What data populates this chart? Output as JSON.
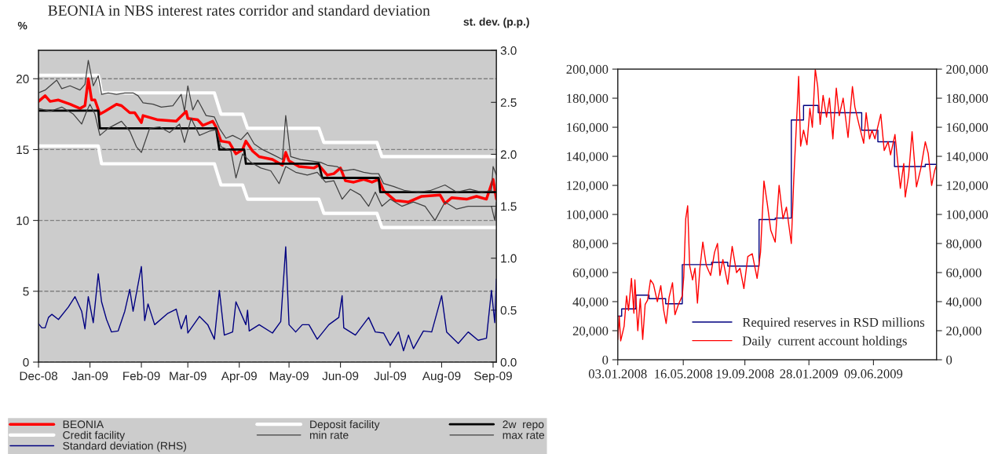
{
  "chart_data": [
    {
      "type": "line",
      "title": "BEONIA in NBS interest rates corridor and standard deviation",
      "ylabel": "%",
      "y2label": "st. dev. (p.p.)",
      "xlim": [
        "2008-12-01",
        "2009-09-03"
      ],
      "xticks": [
        {
          "value": "2008-12-01",
          "label": "Dec-08"
        },
        {
          "value": "2009-01-01",
          "label": "Jan-09"
        },
        {
          "value": "2009-02-01",
          "label": "Feb-09"
        },
        {
          "value": "2009-03-01",
          "label": "Mar-09"
        },
        {
          "value": "2009-04-01",
          "label": "Apr-09"
        },
        {
          "value": "2009-05-01",
          "label": "May-09"
        },
        {
          "value": "2009-06-01",
          "label": "Jun-09"
        },
        {
          "value": "2009-07-01",
          "label": "Jul-09"
        },
        {
          "value": "2009-08-01",
          "label": "Aug-09"
        },
        {
          "value": "2009-09-01",
          "label": "Sep-09"
        }
      ],
      "ylim": [
        0,
        22
      ],
      "yticks": [
        0,
        5,
        10,
        15,
        20
      ],
      "y2lim": [
        0,
        3
      ],
      "y2ticks": [
        {
          "value": 0,
          "label": "0.0"
        },
        {
          "value": 0.5,
          "label": "0.5"
        },
        {
          "value": 1,
          "label": "1.0"
        },
        {
          "value": 1.5,
          "label": "1.5"
        },
        {
          "value": 2,
          "label": "2.0"
        },
        {
          "value": 2.5,
          "label": "2.5"
        },
        {
          "value": 3,
          "label": "3.0"
        }
      ],
      "grid": "y",
      "legend": "bottom",
      "series": [
        {
          "name": "BEONIA",
          "color": "#ff0000",
          "x": [
            "2008-12-01",
            "2008-12-05",
            "2008-12-08",
            "2008-12-13",
            "2008-12-20",
            "2008-12-26",
            "2008-12-29",
            "2008-12-31",
            "2009-01-02",
            "2009-01-04",
            "2009-01-07",
            "2009-01-10",
            "2009-01-17",
            "2009-01-20",
            "2009-01-25",
            "2009-01-28",
            "2009-02-01",
            "2009-02-02",
            "2009-02-11",
            "2009-02-22",
            "2009-02-28",
            "2009-03-01",
            "2009-03-07",
            "2009-03-10",
            "2009-03-16",
            "2009-03-18",
            "2009-03-21",
            "2009-03-26",
            "2009-03-30",
            "2009-04-03",
            "2009-04-05",
            "2009-04-09",
            "2009-04-13",
            "2009-04-21",
            "2009-04-27",
            "2009-04-29",
            "2009-05-01",
            "2009-05-07",
            "2009-05-16",
            "2009-05-19",
            "2009-05-24",
            "2009-05-28",
            "2009-06-01",
            "2009-06-04",
            "2009-06-09",
            "2009-06-15",
            "2009-06-20",
            "2009-06-24",
            "2009-06-27",
            "2009-07-04",
            "2009-07-12",
            "2009-07-20",
            "2009-07-31",
            "2009-08-03",
            "2009-08-07",
            "2009-08-16",
            "2009-08-22",
            "2009-08-28",
            "2009-09-01",
            "2009-09-03"
          ],
          "values": [
            18.4,
            18.8,
            18.4,
            18.5,
            18.2,
            17.9,
            18.1,
            20.0,
            18.5,
            18.5,
            17.5,
            17.7,
            18.2,
            18.1,
            17.6,
            17.6,
            16.9,
            17.4,
            17.1,
            17.0,
            17.7,
            17.2,
            17.1,
            16.7,
            17.0,
            16.6,
            15.6,
            15.5,
            14.7,
            15.0,
            15.6,
            14.9,
            14.5,
            14.3,
            13.9,
            14.8,
            14.2,
            13.8,
            13.7,
            13.9,
            13.2,
            13.3,
            13.7,
            12.8,
            12.7,
            12.9,
            12.7,
            12.9,
            12.1,
            11.4,
            11.3,
            11.7,
            11.8,
            11.2,
            11.6,
            11.5,
            11.7,
            11.5,
            12.9,
            11.5
          ]
        },
        {
          "name": "Deposit facility",
          "color": "#ffffff",
          "x": [
            "2008-12-01",
            "2009-01-06",
            "2009-01-08",
            "2009-03-17",
            "2009-03-21",
            "2009-04-03",
            "2009-04-06",
            "2009-05-19",
            "2009-05-22",
            "2009-06-23",
            "2009-06-26",
            "2009-09-03"
          ],
          "values": [
            15.25,
            15.25,
            14,
            14,
            12.5,
            12.5,
            11.5,
            11.5,
            10.5,
            10.5,
            9.5,
            9.5
          ]
        },
        {
          "name": "2w  repo",
          "color": "#000000",
          "x": [
            "2008-12-01",
            "2009-01-06",
            "2009-01-07",
            "2009-03-18",
            "2009-03-20",
            "2009-04-04",
            "2009-04-05",
            "2009-05-19",
            "2009-05-21",
            "2009-06-24",
            "2009-06-25",
            "2009-09-03"
          ],
          "values": [
            17.75,
            17.75,
            16.5,
            16.5,
            15,
            15,
            14,
            14,
            13,
            13,
            12,
            12
          ]
        },
        {
          "name": "Credit facility",
          "color": "#ffffff",
          "x": [
            "2008-12-01",
            "2009-01-06",
            "2009-01-08",
            "2009-03-17",
            "2009-03-21",
            "2009-04-03",
            "2009-04-06",
            "2009-05-19",
            "2009-05-22",
            "2009-06-23",
            "2009-06-26",
            "2009-09-03"
          ],
          "values": [
            20.25,
            20.25,
            19,
            19,
            17.5,
            17.5,
            16.5,
            16.5,
            15.5,
            15.5,
            14.5,
            14.5
          ]
        },
        {
          "name": "min rate",
          "color": "#404040",
          "x": [
            "2008-12-01",
            "2008-12-08",
            "2008-12-15",
            "2008-12-22",
            "2008-12-27",
            "2008-12-30",
            "2009-01-01",
            "2009-01-04",
            "2009-01-07",
            "2009-01-12",
            "2009-01-20",
            "2009-01-25",
            "2009-01-29",
            "2009-02-01",
            "2009-02-06",
            "2009-02-12",
            "2009-02-18",
            "2009-02-24",
            "2009-02-27",
            "2009-03-03",
            "2009-03-08",
            "2009-03-14",
            "2009-03-18",
            "2009-03-21",
            "2009-03-27",
            "2009-03-30",
            "2009-04-03",
            "2009-04-08",
            "2009-04-14",
            "2009-04-20",
            "2009-04-25",
            "2009-04-29",
            "2009-05-05",
            "2009-05-12",
            "2009-05-18",
            "2009-05-23",
            "2009-05-28",
            "2009-06-02",
            "2009-06-07",
            "2009-06-13",
            "2009-06-18",
            "2009-06-22",
            "2009-06-26",
            "2009-07-01",
            "2009-07-08",
            "2009-07-15",
            "2009-07-22",
            "2009-07-28",
            "2009-08-03",
            "2009-08-10",
            "2009-08-17",
            "2009-08-24",
            "2009-08-31",
            "2009-09-02",
            "2009-09-03"
          ],
          "values": [
            17.9,
            17.7,
            18.0,
            17.5,
            16.8,
            17.7,
            18.2,
            17.5,
            16.0,
            16.5,
            17.0,
            16.3,
            15.2,
            14.8,
            16.5,
            16.6,
            16.2,
            16.8,
            15.5,
            17.2,
            16.0,
            16.3,
            16.4,
            15.2,
            14.9,
            13.0,
            14.7,
            14.1,
            13.7,
            13.5,
            12.6,
            13.8,
            13.4,
            13.2,
            13.4,
            12.7,
            12.8,
            11.5,
            12.2,
            11.8,
            11.0,
            12.0,
            11.0,
            11.5,
            11.0,
            11.3,
            11.0,
            10.0,
            11.3,
            10.8,
            11.0,
            11.0,
            11.0,
            10.0,
            11.3
          ]
        },
        {
          "name": "max rate",
          "color": "#404040",
          "x": [
            "2008-12-01",
            "2008-12-05",
            "2008-12-08",
            "2008-12-12",
            "2008-12-15",
            "2008-12-20",
            "2008-12-26",
            "2008-12-29",
            "2008-12-31",
            "2009-01-03",
            "2009-01-06",
            "2009-01-08",
            "2009-01-12",
            "2009-01-17",
            "2009-01-22",
            "2009-01-27",
            "2009-01-30",
            "2009-02-02",
            "2009-02-08",
            "2009-02-13",
            "2009-02-20",
            "2009-02-25",
            "2009-02-27",
            "2009-03-01",
            "2009-03-04",
            "2009-03-07",
            "2009-03-12",
            "2009-03-17",
            "2009-03-20",
            "2009-03-24",
            "2009-03-28",
            "2009-04-02",
            "2009-04-06",
            "2009-04-10",
            "2009-04-15",
            "2009-04-22",
            "2009-04-27",
            "2009-04-29",
            "2009-05-02",
            "2009-05-08",
            "2009-05-14",
            "2009-05-20",
            "2009-05-24",
            "2009-05-30",
            "2009-06-03",
            "2009-06-09",
            "2009-06-15",
            "2009-06-20",
            "2009-06-24",
            "2009-06-27",
            "2009-07-03",
            "2009-07-10",
            "2009-07-18",
            "2009-07-25",
            "2009-08-03",
            "2009-08-10",
            "2009-08-18",
            "2009-08-25",
            "2009-08-31",
            "2009-09-01",
            "2009-09-03"
          ],
          "values": [
            19.0,
            19.2,
            19.5,
            19.9,
            19.3,
            19.5,
            19.2,
            19.6,
            21.3,
            19.5,
            20.2,
            18.9,
            19.0,
            18.9,
            19.0,
            19.0,
            18.8,
            18.3,
            18.2,
            18.0,
            18.1,
            18.9,
            17.7,
            19.5,
            17.8,
            18.5,
            17.4,
            17.3,
            16.5,
            15.8,
            16.0,
            15.7,
            16.2,
            15.4,
            15.0,
            14.6,
            14.3,
            17.4,
            14.5,
            14.3,
            14.2,
            14.1,
            13.9,
            13.8,
            13.5,
            13.6,
            13.4,
            13.3,
            13.3,
            12.6,
            12.4,
            12.1,
            12.0,
            12.1,
            12.5,
            12.0,
            12.2,
            12.0,
            12.1,
            13.8,
            13.2
          ]
        },
        {
          "name": "Standard deviation (RHS)",
          "color": "#000080",
          "axis": "y2",
          "x": [
            "2008-12-01",
            "2008-12-03",
            "2008-12-05",
            "2008-12-07",
            "2008-12-09",
            "2008-12-13",
            "2008-12-19",
            "2008-12-23",
            "2008-12-27",
            "2008-12-29",
            "2008-12-31",
            "2009-01-03",
            "2009-01-06",
            "2009-01-08",
            "2009-01-11",
            "2009-01-14",
            "2009-01-18",
            "2009-01-22",
            "2009-01-25",
            "2009-01-27",
            "2009-02-01",
            "2009-02-03",
            "2009-02-05",
            "2009-02-09",
            "2009-02-17",
            "2009-02-22",
            "2009-02-25",
            "2009-02-28",
            "2009-03-01",
            "2009-03-08",
            "2009-03-13",
            "2009-03-17",
            "2009-03-20",
            "2009-03-23",
            "2009-03-28",
            "2009-03-30",
            "2009-04-05",
            "2009-04-06",
            "2009-04-07",
            "2009-04-13",
            "2009-04-21",
            "2009-04-26",
            "2009-04-29",
            "2009-05-01",
            "2009-05-05",
            "2009-05-09",
            "2009-05-13",
            "2009-05-18",
            "2009-05-25",
            "2009-05-31",
            "2009-06-02",
            "2009-06-03",
            "2009-06-10",
            "2009-06-18",
            "2009-06-22",
            "2009-06-27",
            "2009-07-01",
            "2009-07-06",
            "2009-07-09",
            "2009-07-12",
            "2009-07-15",
            "2009-07-21",
            "2009-07-26",
            "2009-08-01",
            "2009-08-04",
            "2009-08-11",
            "2009-08-17",
            "2009-08-23",
            "2009-08-28",
            "2009-08-31",
            "2009-09-02",
            "2009-09-03"
          ],
          "values": [
            0.37,
            0.33,
            0.33,
            0.43,
            0.46,
            0.41,
            0.53,
            0.63,
            0.49,
            0.32,
            0.63,
            0.38,
            0.85,
            0.58,
            0.41,
            0.29,
            0.3,
            0.49,
            0.7,
            0.49,
            0.92,
            0.4,
            0.56,
            0.36,
            0.47,
            0.51,
            0.32,
            0.45,
            0.28,
            0.44,
            0.36,
            0.22,
            0.69,
            0.26,
            0.29,
            0.58,
            0.36,
            0.5,
            0.3,
            0.36,
            0.28,
            0.39,
            1.11,
            0.36,
            0.29,
            0.36,
            0.36,
            0.22,
            0.36,
            0.43,
            0.64,
            0.33,
            0.26,
            0.43,
            0.29,
            0.28,
            0.16,
            0.29,
            0.11,
            0.26,
            0.13,
            0.3,
            0.29,
            0.64,
            0.29,
            0.18,
            0.29,
            0.21,
            0.23,
            0.69,
            0.38,
            0.8
          ]
        }
      ]
    },
    {
      "type": "line",
      "xlim": [
        "2008-01-03",
        "2009-10-16"
      ],
      "xticks": [
        {
          "value": "2008-01-03",
          "label": "03.01.2008"
        },
        {
          "value": "2008-05-16",
          "label": "16.05.2008"
        },
        {
          "value": "2008-09-19",
          "label": "19.09.2008"
        },
        {
          "value": "2009-01-28",
          "label": "28.01.2009"
        },
        {
          "value": "2009-06-09",
          "label": "09.06.2009"
        }
      ],
      "ylim": [
        0,
        200000
      ],
      "yticks": [
        0,
        {
          "value": 20000,
          "label": "20,000"
        },
        {
          "value": 40000,
          "label": "40,000"
        },
        {
          "value": 60000,
          "label": "60,000"
        },
        {
          "value": 80000,
          "label": "80,000"
        },
        {
          "value": 100000,
          "label": "100,000"
        },
        {
          "value": 120000,
          "label": "120,000"
        },
        {
          "value": 140000,
          "label": "140,000"
        },
        {
          "value": 160000,
          "label": "160,000"
        },
        {
          "value": 180000,
          "label": "180,000"
        },
        {
          "value": 200000,
          "label": "200,000"
        }
      ],
      "y2lim": [
        0,
        200000
      ],
      "y2ticks": [
        0,
        {
          "value": 20000,
          "label": "20,000"
        },
        {
          "value": 40000,
          "label": "40,000"
        },
        {
          "value": 60000,
          "label": "60,000"
        },
        {
          "value": 80000,
          "label": "80,000"
        },
        {
          "value": 100000,
          "label": "100,000"
        },
        {
          "value": 120000,
          "label": "120,000"
        },
        {
          "value": 140000,
          "label": "140,000"
        },
        {
          "value": 160000,
          "label": "160,000"
        },
        {
          "value": 180000,
          "label": "180,000"
        },
        {
          "value": 200000,
          "label": "200,000"
        }
      ],
      "grid": false,
      "legend": "bottom right",
      "series": [
        {
          "name": "Required reserves in RSD millions",
          "color": "#000080",
          "x": [
            "2008-01-03",
            "2008-01-11",
            "2008-01-11",
            "2008-02-09",
            "2008-02-09",
            "2008-03-07",
            "2008-03-07",
            "2008-04-10",
            "2008-04-10",
            "2008-05-14",
            "2008-05-14",
            "2008-07-13",
            "2008-07-13",
            "2008-08-15",
            "2008-08-15",
            "2008-10-18",
            "2008-10-18",
            "2008-11-20",
            "2008-11-20",
            "2008-12-23",
            "2008-12-23",
            "2009-01-17",
            "2009-01-17",
            "2009-02-16",
            "2009-02-16",
            "2009-05-16",
            "2009-05-16",
            "2009-06-18",
            "2009-06-18",
            "2009-07-22",
            "2009-07-22",
            "2009-09-23",
            "2009-09-23",
            "2009-10-16"
          ],
          "values": [
            30000,
            30000,
            35000,
            35000,
            44500,
            44500,
            42000,
            42000,
            38500,
            38500,
            65500,
            65500,
            67000,
            67000,
            64500,
            64500,
            96500,
            96500,
            97500,
            97500,
            165000,
            165000,
            175000,
            175000,
            170000,
            170000,
            158000,
            158000,
            150000,
            150000,
            133000,
            133000,
            134500,
            134500
          ]
        },
        {
          "name": "Daily  current account holdings",
          "color": "#ff0000",
          "x": [
            "2008-01-03",
            "2008-01-06",
            "2008-01-09",
            "2008-01-16",
            "2008-01-21",
            "2008-01-25",
            "2008-01-31",
            "2008-02-05",
            "2008-02-07",
            "2008-02-13",
            "2008-02-18",
            "2008-02-23",
            "2008-02-28",
            "2008-03-04",
            "2008-03-10",
            "2008-03-16",
            "2008-03-24",
            "2008-03-31",
            "2008-04-06",
            "2008-04-11",
            "2008-04-17",
            "2008-04-24",
            "2008-04-29",
            "2008-05-06",
            "2008-05-14",
            "2008-05-17",
            "2008-05-21",
            "2008-05-25",
            "2008-05-29",
            "2008-06-04",
            "2008-06-09",
            "2008-06-14",
            "2008-06-19",
            "2008-06-25",
            "2008-07-02",
            "2008-07-11",
            "2008-07-19",
            "2008-07-25",
            "2008-07-30",
            "2008-08-05",
            "2008-08-15",
            "2008-08-24",
            "2008-09-02",
            "2008-09-09",
            "2008-09-17",
            "2008-09-25",
            "2008-10-04",
            "2008-10-14",
            "2008-10-21",
            "2008-10-28",
            "2008-11-04",
            "2008-11-11",
            "2008-11-20",
            "2008-11-28",
            "2008-12-06",
            "2008-12-13",
            "2008-12-23",
            "2008-12-28",
            "2009-01-04",
            "2009-01-07",
            "2009-01-11",
            "2009-01-17",
            "2009-01-24",
            "2009-01-30",
            "2009-02-04",
            "2009-02-10",
            "2009-02-15",
            "2009-02-20",
            "2009-02-26",
            "2009-03-05",
            "2009-03-11",
            "2009-03-18",
            "2009-03-25",
            "2009-03-31",
            "2009-04-08",
            "2009-04-18",
            "2009-04-27",
            "2009-05-02",
            "2009-05-11",
            "2009-05-20",
            "2009-05-25",
            "2009-06-01",
            "2009-06-06",
            "2009-06-12",
            "2009-06-24",
            "2009-07-01",
            "2009-07-09",
            "2009-07-14",
            "2009-07-23",
            "2009-08-03",
            "2009-08-10",
            "2009-08-13",
            "2009-08-20",
            "2009-08-27",
            "2009-09-05",
            "2009-09-14",
            "2009-09-23",
            "2009-09-29",
            "2009-10-06",
            "2009-10-12",
            "2009-10-16"
          ],
          "values": [
            14000,
            30000,
            13000,
            23000,
            44000,
            34000,
            56000,
            32000,
            55000,
            20000,
            42000,
            14000,
            38000,
            41000,
            55000,
            52000,
            40000,
            51000,
            34000,
            25000,
            43000,
            53000,
            31000,
            38000,
            44000,
            57000,
            97000,
            106000,
            65000,
            55000,
            63000,
            39000,
            63000,
            81000,
            65000,
            58000,
            74000,
            80000,
            58000,
            69000,
            52000,
            78000,
            60000,
            63000,
            49000,
            71000,
            73000,
            56000,
            74000,
            123000,
            107000,
            89000,
            81000,
            120000,
            97000,
            105000,
            80000,
            124000,
            173000,
            195000,
            147000,
            158000,
            148000,
            173000,
            160000,
            200000,
            188000,
            162000,
            182000,
            167000,
            180000,
            152000,
            187000,
            168000,
            180000,
            153000,
            188000,
            174000,
            161000,
            149000,
            170000,
            152000,
            158000,
            152000,
            169000,
            144000,
            150000,
            141000,
            155000,
            118000,
            135000,
            112000,
            127000,
            157000,
            119000,
            132000,
            150000,
            142000,
            120000,
            130000,
            134000
          ]
        }
      ]
    }
  ]
}
